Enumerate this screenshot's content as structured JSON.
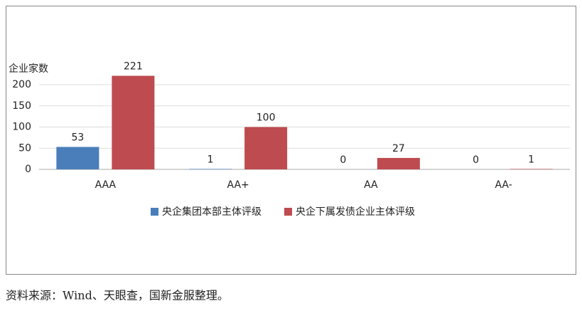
{
  "chart_data": {
    "type": "bar",
    "y_label": "企业家数",
    "categories": [
      "AAA",
      "AA+",
      "AA",
      "AA-"
    ],
    "series": [
      {
        "name": "央企集团本部主体评级",
        "color": "#4a7ebb",
        "values": [
          53,
          1,
          0,
          0
        ]
      },
      {
        "name": "央企下属发债企业主体评级",
        "color": "#be4b4f",
        "values": [
          221,
          100,
          27,
          1
        ]
      }
    ],
    "ylim": [
      0,
      200
    ],
    "yticks": [
      0,
      50,
      100,
      150,
      200
    ],
    "grid": true,
    "legend": "bottom",
    "source": "资料来源：Wind、天眼查，国新金服整理。"
  }
}
